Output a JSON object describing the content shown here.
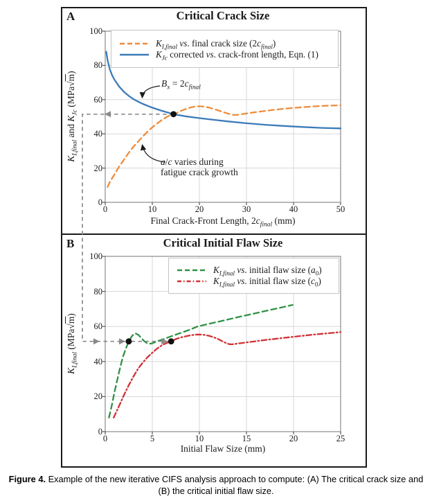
{
  "panel_a": {
    "label": "A",
    "title": "Critical Crack Size",
    "xlabel": "Final Crack-Front Length, 2$c$_{$final$} (mm)",
    "ylabel": "$K$_{$I,final$} and $K$_{$Jc$} (MPa√~{m})",
    "annotations": {
      "bx": "$B$_{$x$} = 2$c$_{$final$}",
      "ac_line1": "$a$/$c$ varies during",
      "ac_line2": "fatigue crack growth"
    }
  },
  "panel_b": {
    "label": "B",
    "title": "Critical Initial Flaw Size",
    "xlabel": "Initial Flaw Size (mm)",
    "ylabel": "$K$_{$I,final$} (MPa√~{m})"
  },
  "caption": {
    "label": "Figure 4.",
    "line1_rest": " Example of the new iterative CIFS analysis approach to compute: (A) The critical crack size and",
    "line2": "(B) the critical initial flaw size."
  },
  "connector": {
    "color": "#8a8a8a",
    "critical_K": 51.5
  },
  "chart_data": [
    {
      "type": "line",
      "panel": "A",
      "title": "Critical Crack Size",
      "xlabel": "Final Crack-Front Length, 2c_final (mm)",
      "ylabel": "K_I,final and K_Jc (MPa sqrt m)",
      "xlim": [
        0,
        50
      ],
      "ylim": [
        0,
        100
      ],
      "xticks": [
        0,
        10,
        20,
        30,
        40,
        50
      ],
      "yticks": [
        0,
        20,
        40,
        60,
        80,
        100
      ],
      "grid": true,
      "legend_position": "top",
      "series": [
        {
          "id": "ki-final-vs-2c-final",
          "name": "$K$_{$I,final$} $vs$. final crack size (2$c$_{$final$})",
          "color": "#EE8C3B",
          "style": "dashed",
          "x": [
            0.5,
            1,
            2,
            3,
            4,
            5,
            6,
            7,
            8,
            9,
            10,
            11,
            12,
            13,
            14,
            14.5,
            15,
            16,
            17,
            18,
            19,
            20,
            21,
            22,
            23,
            24,
            25,
            26,
            27,
            27.5,
            28,
            29,
            30,
            32,
            34,
            36,
            38,
            40,
            42,
            44,
            46,
            48,
            50
          ],
          "y": [
            9,
            12,
            16.5,
            21,
            25,
            29,
            32.5,
            35.5,
            38.5,
            41.3,
            43.8,
            46,
            48,
            49.8,
            51.2,
            51.5,
            52,
            53.3,
            54.4,
            55.3,
            55.9,
            56.1,
            55.9,
            55.4,
            54.6,
            53.7,
            52.8,
            51.9,
            51.2,
            51,
            51.1,
            51.5,
            51.9,
            52.7,
            53.4,
            54.1,
            54.7,
            55.2,
            55.6,
            56,
            56.3,
            56.5,
            56.7
          ]
        },
        {
          "id": "kjc-corrected-vs-crack-front-length",
          "name": "$K$_{$Jc$} corrected $vs$. crack-front length, Eqn. (1)",
          "color": "#3B7BB8",
          "style": "solid",
          "x": [
            0.2,
            0.5,
            1,
            1.5,
            2,
            3,
            4,
            5,
            6,
            7,
            8,
            10,
            12,
            14.5,
            17,
            20,
            23,
            26,
            30,
            34,
            38,
            42,
            46,
            50
          ],
          "y": [
            88,
            83,
            77.5,
            74,
            71.5,
            67.5,
            64.5,
            62.2,
            60.3,
            58.8,
            57.5,
            55.3,
            53.5,
            51.5,
            50.3,
            49.2,
            48.2,
            47.3,
            46.2,
            45.3,
            44.6,
            44,
            43.5,
            43.2
          ]
        }
      ],
      "critical_points": [
        {
          "x": 14.5,
          "y": 51.5
        }
      ]
    },
    {
      "type": "line",
      "panel": "B",
      "title": "Critical Initial Flaw Size",
      "xlabel": "Initial Flaw Size (mm)",
      "ylabel": "K_I,final (MPa sqrt m)",
      "xlim": [
        0,
        25
      ],
      "ylim": [
        0,
        100
      ],
      "xticks": [
        0,
        5,
        10,
        15,
        20,
        25
      ],
      "yticks": [
        0,
        20,
        40,
        60,
        80,
        100
      ],
      "grid": true,
      "legend_position": "top-right",
      "series": [
        {
          "id": "ki-final-vs-initial-flaw-size-a0",
          "name": "$K$_{$I,final$} $vs$. initial flaw size ($a$_{0})",
          "color": "#2F9145",
          "style": "dashed",
          "x": [
            0.4,
            0.7,
            1.0,
            1.3,
            1.6,
            1.9,
            2.2,
            2.5,
            2.8,
            3.0,
            3.2,
            3.5,
            3.8,
            4.1,
            4.4,
            4.7,
            5.0,
            5.5,
            6,
            7,
            8,
            9,
            9.8,
            11,
            12,
            13,
            14,
            15,
            16,
            17,
            18,
            19,
            19.9
          ],
          "y": [
            8,
            15,
            23,
            30,
            37,
            43,
            47.5,
            51.5,
            54.2,
            55.5,
            56.1,
            55.3,
            53.6,
            51.8,
            50.6,
            50.1,
            50.4,
            51.5,
            52.4,
            54.4,
            56.3,
            58.2,
            60,
            61.5,
            62.7,
            63.9,
            65.2,
            66.4,
            67.6,
            68.8,
            70,
            71.2,
            72.3
          ]
        },
        {
          "id": "ki-final-vs-initial-flaw-size-c0",
          "name": "$K$_{$I,final$} $vs$. initial flaw size ($c$_{0})",
          "color": "#D03034",
          "style": "dashdot",
          "x": [
            0.9,
            1.5,
            2,
            2.5,
            3,
            3.5,
            4,
            4.5,
            5,
            5.5,
            6,
            6.5,
            7,
            7.5,
            8,
            9,
            9.5,
            10,
            10.5,
            11,
            11.5,
            12,
            12.5,
            13,
            13.3,
            13.6,
            14,
            15,
            16,
            17,
            18,
            19,
            20,
            21,
            22,
            23,
            24,
            25
          ],
          "y": [
            8,
            15,
            21,
            26.5,
            31.5,
            36,
            39.5,
            42.5,
            45,
            47.3,
            49.2,
            50.5,
            51.5,
            52.8,
            53.7,
            54.9,
            55.3,
            55.4,
            55.2,
            54.7,
            53.9,
            52.8,
            51.4,
            50.1,
            49.8,
            49.9,
            50.2,
            50.9,
            51.6,
            52.3,
            52.9,
            53.5,
            54.1,
            54.7,
            55.3,
            55.8,
            56.3,
            56.8
          ]
        }
      ],
      "critical_points": [
        {
          "x": 2.5,
          "y": 51.5
        },
        {
          "x": 7.0,
          "y": 51.5
        }
      ]
    }
  ]
}
